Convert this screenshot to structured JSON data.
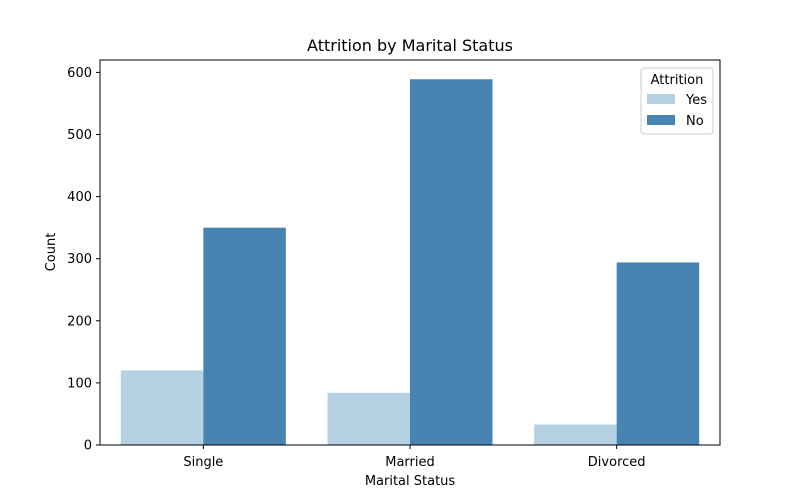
{
  "chart_data": {
    "type": "bar",
    "title": "Attrition by Marital Status",
    "xlabel": "Marital Status",
    "ylabel": "Count",
    "categories": [
      "Single",
      "Married",
      "Divorced"
    ],
    "series": [
      {
        "name": "Yes",
        "values": [
          120,
          84,
          33
        ],
        "color": "#b3d1e3"
      },
      {
        "name": "No",
        "values": [
          350,
          589,
          294
        ],
        "color": "#4884b2"
      }
    ],
    "ylim": [
      0,
      620
    ],
    "yticks": [
      0,
      100,
      200,
      300,
      400,
      500,
      600
    ],
    "grid": false,
    "legend": {
      "title": "Attrition",
      "placement": "top-right"
    }
  }
}
